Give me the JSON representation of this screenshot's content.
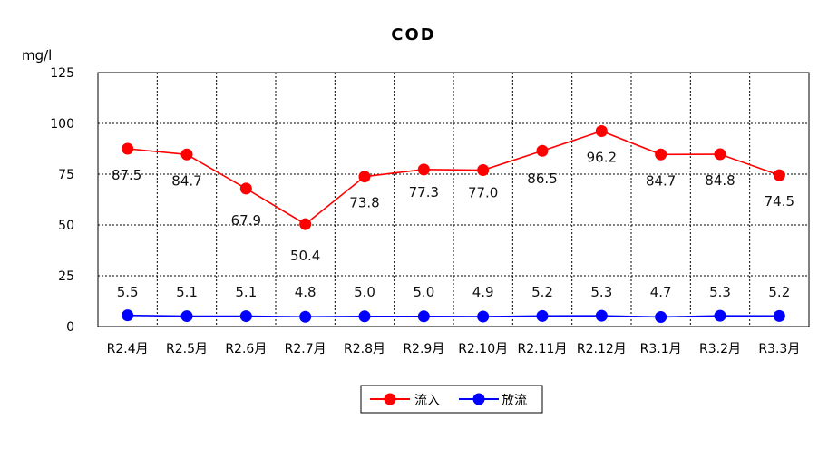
{
  "chart_data": {
    "type": "line",
    "title": "COD",
    "unit_label": "mg/l",
    "categories": [
      "R2.4月",
      "R2.5月",
      "R2.6月",
      "R2.7月",
      "R2.8月",
      "R2.9月",
      "R2.10月",
      "R2.11月",
      "R2.12月",
      "R3.1月",
      "R3.2月",
      "R3.3月"
    ],
    "ylim": [
      0,
      125
    ],
    "yticks": [
      "0",
      "25",
      "50",
      "75",
      "100",
      "125"
    ],
    "grid": true,
    "legend_position": "bottom-center",
    "series": [
      {
        "name": "流入",
        "color": "#ff0000",
        "values": [
          87.5,
          84.7,
          67.9,
          50.4,
          73.8,
          77.3,
          77.0,
          86.5,
          96.2,
          84.7,
          84.8,
          74.5
        ],
        "labels": [
          "87.5",
          "84.7",
          "67.9",
          "50.4",
          "73.8",
          "77.3",
          "77.0",
          "86.5",
          "96.2",
          "84.7",
          "84.8",
          "74.5"
        ]
      },
      {
        "name": "放流",
        "color": "#0000ff",
        "values": [
          5.5,
          5.1,
          5.1,
          4.8,
          5.0,
          5.0,
          4.9,
          5.2,
          5.3,
          4.7,
          5.3,
          5.2
        ],
        "labels": [
          "5.5",
          "5.1",
          "5.1",
          "4.8",
          "5.0",
          "5.0",
          "4.9",
          "5.2",
          "5.3",
          "4.7",
          "5.3",
          "5.2"
        ]
      }
    ]
  }
}
